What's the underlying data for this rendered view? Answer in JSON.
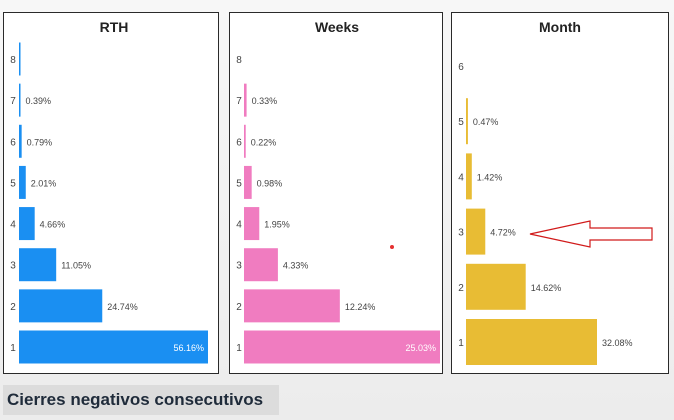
{
  "caption": "Cierres negativos consecutivos",
  "colors": {
    "rth": "#1a8ff2",
    "weeks": "#f07cc0",
    "month": "#e8bc34",
    "arrow": "#d11a1a",
    "text": "#444444",
    "label_inside": "#ffffff",
    "caption_text": "#1f2b3a",
    "dot": "#e53030"
  },
  "chart_data": [
    {
      "type": "bar",
      "orientation": "horizontal",
      "title": "RTH",
      "categories": [
        "8",
        "7",
        "6",
        "5",
        "4",
        "3",
        "2",
        "1"
      ],
      "values": [
        0.1,
        0.39,
        0.79,
        2.01,
        4.66,
        11.05,
        24.74,
        56.16
      ],
      "labels": [
        "",
        "0.39%",
        "0.79%",
        "2.01%",
        "4.66%",
        "11.05%",
        "24.74%",
        "56.16%"
      ],
      "xlim": [
        0,
        56.16
      ],
      "color_key": "rth"
    },
    {
      "type": "bar",
      "orientation": "horizontal",
      "title": "Weeks",
      "categories": [
        "8",
        "7",
        "6",
        "5",
        "4",
        "3",
        "2",
        "1"
      ],
      "values": [
        0,
        0.33,
        0.22,
        0.98,
        1.95,
        4.33,
        12.24,
        25.03
      ],
      "labels": [
        "",
        "0.33%",
        "0.22%",
        "0.98%",
        "1.95%",
        "4.33%",
        "12.24%",
        "25.03%"
      ],
      "xlim": [
        0,
        25.03
      ],
      "color_key": "weeks"
    },
    {
      "type": "bar",
      "orientation": "horizontal",
      "title": "Month",
      "categories": [
        "6",
        "5",
        "4",
        "3",
        "2",
        "1"
      ],
      "values": [
        0,
        0.47,
        1.42,
        4.72,
        14.62,
        32.08
      ],
      "labels": [
        "",
        "0.47%",
        "1.42%",
        "4.72%",
        "14.62%",
        "32.08%"
      ],
      "xlim": [
        0,
        48
      ],
      "color_key": "month",
      "annotation": {
        "type": "arrow",
        "points_to": "3"
      }
    }
  ]
}
